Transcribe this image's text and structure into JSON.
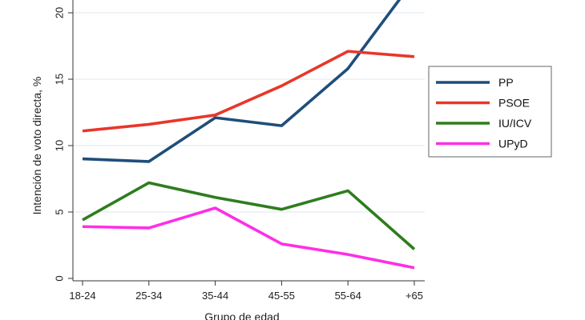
{
  "chart_data": {
    "type": "line",
    "categories": [
      "18-24",
      "25-34",
      "35-44",
      "45-55",
      "55-64",
      "+65"
    ],
    "xlabel": "Grupo de edad",
    "ylabel": "Intención de voto directa, %",
    "ylim": [
      0,
      21
    ],
    "yticks": [
      0,
      5,
      10,
      15,
      20
    ],
    "grid": true,
    "legend": "right",
    "series": [
      {
        "name": "PP",
        "color": "#1f4e79",
        "values": [
          9.0,
          8.8,
          12.1,
          11.5,
          15.8,
          22.5
        ]
      },
      {
        "name": "PSOE",
        "color": "#e8372a",
        "values": [
          11.1,
          11.6,
          12.3,
          14.5,
          17.1,
          16.7
        ]
      },
      {
        "name": "IU/ICV",
        "color": "#2e7d1e",
        "values": [
          4.4,
          7.2,
          6.1,
          5.2,
          6.6,
          2.2
        ]
      },
      {
        "name": "UPyD",
        "color": "#ff2ee6",
        "values": [
          3.9,
          3.8,
          5.3,
          2.6,
          1.8,
          0.8
        ]
      }
    ]
  }
}
